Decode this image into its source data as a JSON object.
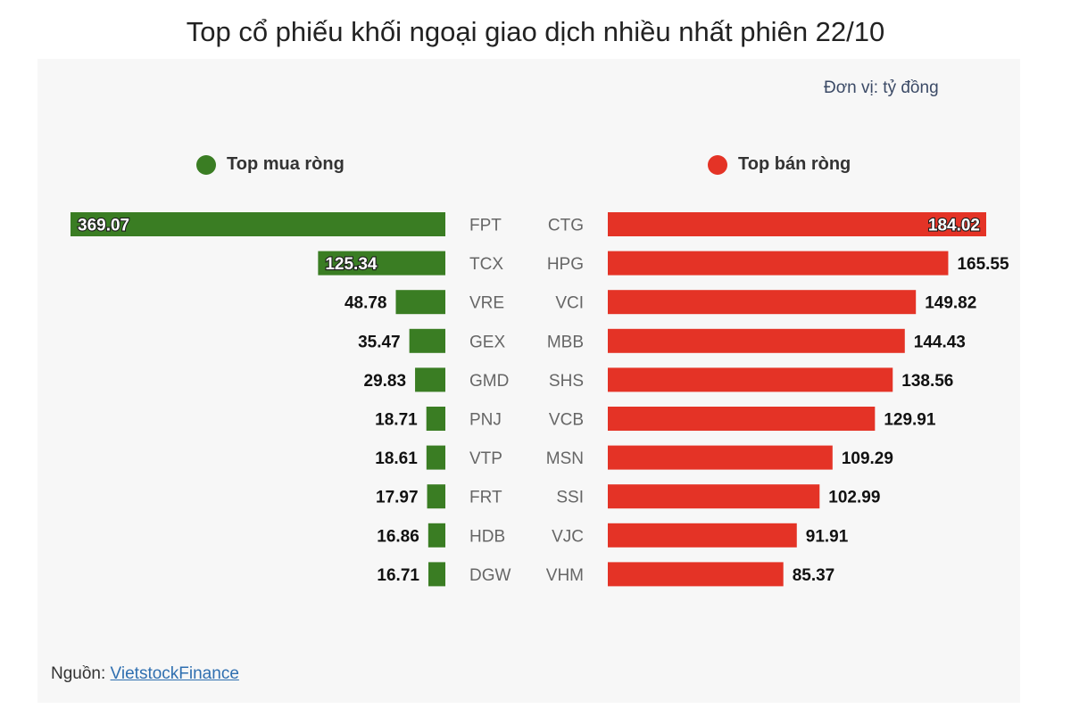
{
  "title": "Top cổ phiếu khối ngoại giao dịch nhiều nhất phiên 22/10",
  "unit": "Đơn vị: tỷ đồng",
  "source": {
    "label": "Nguồn: ",
    "link_text": "VietstockFinance"
  },
  "colors": {
    "buy": "#3a7d23",
    "sell": "#e43326"
  },
  "chart_data": [
    {
      "type": "bar",
      "orientation": "horizontal",
      "legend": "Top mua ròng",
      "categories": [
        "FPT",
        "TCX",
        "VRE",
        "GEX",
        "GMD",
        "PNJ",
        "VTP",
        "FRT",
        "HDB",
        "DGW"
      ],
      "values": [
        369.07,
        125.34,
        48.78,
        35.47,
        29.83,
        18.71,
        18.61,
        17.97,
        16.86,
        16.71
      ],
      "labels": [
        "369.07",
        "125.34",
        "48.78",
        "35.47",
        "29.83",
        "18.71",
        "18.61",
        "17.97",
        "16.86",
        "16.71"
      ],
      "xlim": [
        0,
        369.07
      ]
    },
    {
      "type": "bar",
      "orientation": "horizontal",
      "legend": "Top bán ròng",
      "categories": [
        "CTG",
        "HPG",
        "VCI",
        "MBB",
        "SHS",
        "VCB",
        "MSN",
        "SSI",
        "VJC",
        "VHM"
      ],
      "values": [
        184.02,
        165.55,
        149.82,
        144.43,
        138.56,
        129.91,
        109.29,
        102.99,
        91.91,
        85.37
      ],
      "labels": [
        "184.02",
        "165.55",
        "149.82",
        "144.43",
        "138.56",
        "129.91",
        "109.29",
        "102.99",
        "91.91",
        "85.37"
      ],
      "xlim": [
        0,
        184.02
      ]
    }
  ]
}
